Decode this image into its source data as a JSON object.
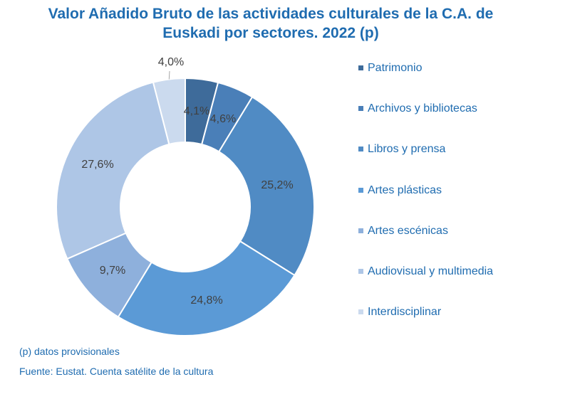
{
  "title": "Valor Añadido Bruto de las actividades culturales de la C.A. de Euskadi por sectores. 2022 (p)",
  "chart_data": {
    "type": "pie",
    "variant": "donut",
    "title": "Valor Añadido Bruto de las actividades culturales de la C.A. de Euskadi por sectores. 2022 (p)",
    "categories": [
      "Patrimonio",
      "Archivos y bibliotecas",
      "Libros y prensa",
      "Artes plásticas",
      "Artes escénicas",
      "Audiovisual y multimedia",
      "Interdisciplinar"
    ],
    "values": [
      4.1,
      4.6,
      25.2,
      24.8,
      9.7,
      27.6,
      4.0
    ],
    "data_labels": [
      "4,1%",
      "4,6%",
      "25,2%",
      "24,8%",
      "9,7%",
      "27,6%",
      "4,0%"
    ],
    "colors": [
      "#3e6b9a",
      "#4a7fb8",
      "#508bc4",
      "#5b9ad6",
      "#8eb0dc",
      "#aec6e6",
      "#cbdaee"
    ],
    "legend_position": "right"
  },
  "notes": {
    "provisional": "(p) datos provisionales",
    "source": "Fuente: Eustat. Cuenta satélite de la cultura"
  }
}
